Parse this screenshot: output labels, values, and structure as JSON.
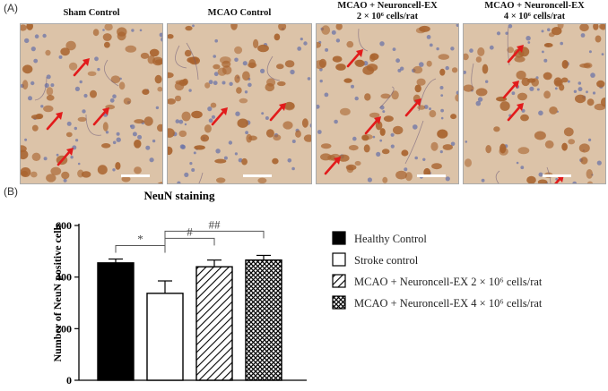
{
  "panel_a_label": "(A)",
  "panel_b_label": "(B)",
  "micrographs": [
    {
      "title_line1": "Sham Control",
      "title_line2": ""
    },
    {
      "title_line1": "MCAO Control",
      "title_line2": ""
    },
    {
      "title_line1": "MCAO + Neuroncell-EX",
      "title_line2": "2 × 10⁶ cells/rat"
    },
    {
      "title_line1": "MCAO + Neuroncell-EX",
      "title_line2": "4 × 10⁶ cells/rat"
    }
  ],
  "colors": {
    "tissue_bg": "#dcc3a8",
    "stained_neuron": "#a9642f",
    "nucleus": "#6c74a8",
    "arrow": "#e21b1b",
    "scale_bar": "#ffffff"
  },
  "chart_data": {
    "type": "bar",
    "title": "NeuN staining",
    "ylabel": "Number of NeuN positive cells",
    "xlabel": "",
    "ylim": [
      0,
      600
    ],
    "yticks": [
      0,
      200,
      400,
      600
    ],
    "grid": false,
    "legend_position": "right",
    "categories": [
      "Healthy Control",
      "Stroke control",
      "MCAO + Neuroncell-EX 2 × 10⁶ cells/rat",
      "MCAO + Neuroncell-EX 4 × 10⁶ cells/rat"
    ],
    "values": [
      455,
      337,
      440,
      466
    ],
    "errors": [
      15,
      48,
      26,
      18
    ],
    "fills": [
      "solid-black",
      "white",
      "diagonal-hatch",
      "crosshatch"
    ],
    "significance": [
      {
        "from": 0,
        "to": 1,
        "label": "*"
      },
      {
        "from": 1,
        "to": 2,
        "label": "#"
      },
      {
        "from": 1,
        "to": 3,
        "label": "##"
      }
    ]
  }
}
